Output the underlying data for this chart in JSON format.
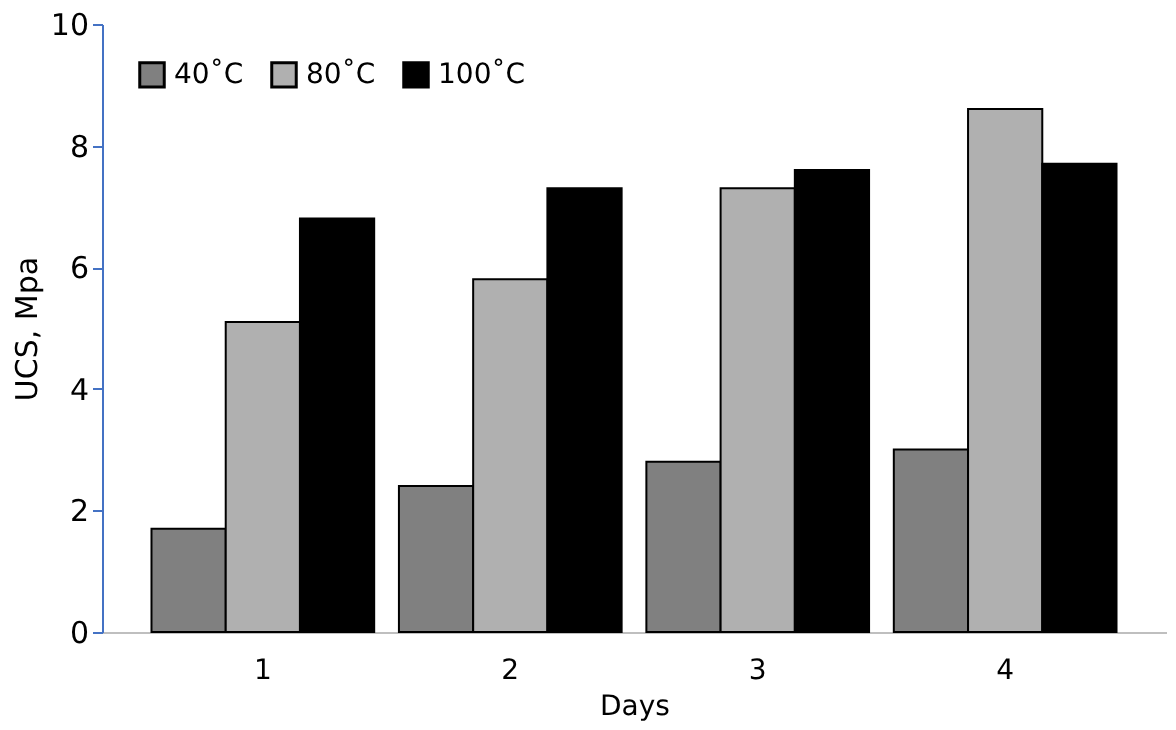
{
  "chart_data": {
    "type": "bar",
    "xlabel": "Days",
    "ylabel": "UCS, Mpa",
    "categories": [
      "1",
      "2",
      "3",
      "4"
    ],
    "series": [
      {
        "name": "40˚C",
        "color": "#808080",
        "values": [
          1.7,
          2.4,
          2.8,
          3.0
        ]
      },
      {
        "name": "80˚C",
        "color": "#b0b0b0",
        "values": [
          5.1,
          5.8,
          7.3,
          8.6
        ]
      },
      {
        "name": "100˚C",
        "color": "#000000",
        "values": [
          6.8,
          7.3,
          7.6,
          7.7
        ]
      }
    ],
    "ylim": [
      0,
      10
    ],
    "yticks": [
      0,
      2,
      4,
      6,
      8,
      10
    ],
    "grid": false,
    "legend": "top left"
  }
}
